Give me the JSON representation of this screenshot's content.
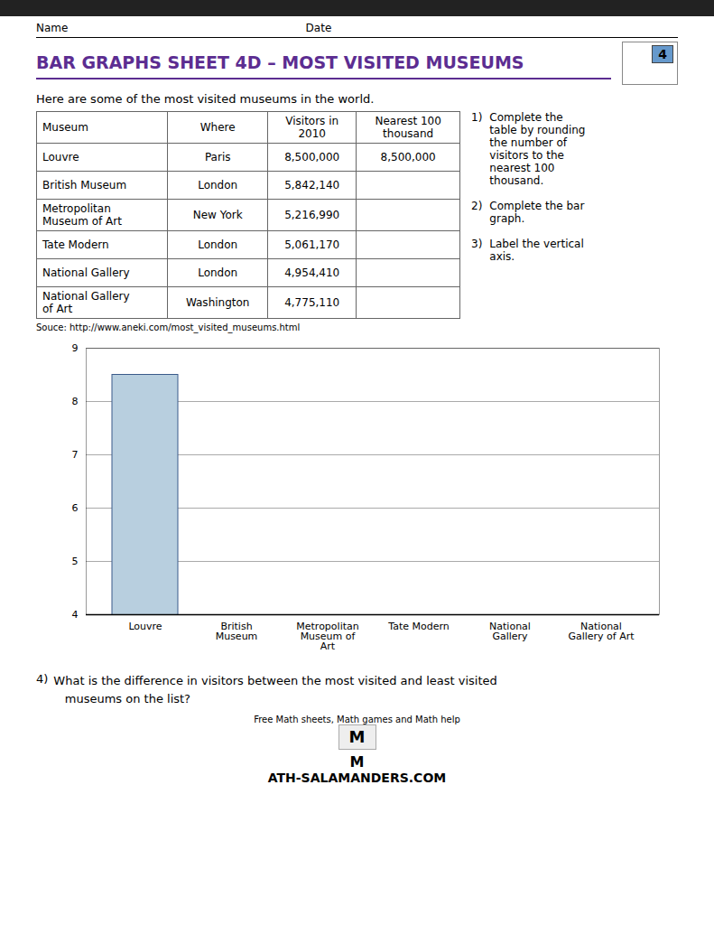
{
  "chart_data": {
    "type": "bar",
    "title": "BAR GRAPHS SHEET 4D – MOST VISITED MUSEUMS",
    "subtitle": "Here are some of the most visited museums in the world.",
    "categories": [
      "Louvre",
      "British\nMuseum",
      "Metropolitan\nMuseum of\nArt",
      "Tate Modern",
      "National\nGallery",
      "National\nGallery of Art"
    ],
    "values": [
      8.5,
      null,
      null,
      null,
      null,
      null
    ],
    "color": "#b8cfdf",
    "ylim": [
      4,
      9
    ],
    "yticks": [
      4,
      5,
      6,
      7,
      8,
      9
    ],
    "grid": true,
    "table": {
      "columns": [
        "Museum",
        "Where",
        "Visitors in\n2010",
        "Nearest 100\nthousand"
      ],
      "rows": [
        [
          "Louvre",
          "Paris",
          "8,500,000",
          "8,500,000"
        ],
        [
          "British Museum",
          "London",
          "5,842,140",
          ""
        ],
        [
          "Metropolitan\nMuseum of Art",
          "New York",
          "5,216,990",
          ""
        ],
        [
          "Tate Modern",
          "London",
          "5,061,170",
          ""
        ],
        [
          "National Gallery",
          "London",
          "4,954,410",
          ""
        ],
        [
          "National Gallery\nof Art",
          "Washington",
          "4,775,110",
          ""
        ]
      ]
    },
    "annotations": [
      "Name",
      "Date",
      "4",
      "1)",
      "Complete the\ntable by rounding\nthe number of\nvisitors to the\nnearest 100\nthousand.",
      "2)",
      "Complete the bar\ngraph.",
      "3)",
      "Label the vertical\naxis.",
      "Souce: http://www.aneki.com/most_visited_museums.html",
      "4)",
      "What is the difference in visitors between the most visited and least visited\n   museums on the list?",
      "Free Math sheets, Math games and Math help",
      "M",
      "M",
      "ATH-SALAMANDERS.COM"
    ]
  }
}
